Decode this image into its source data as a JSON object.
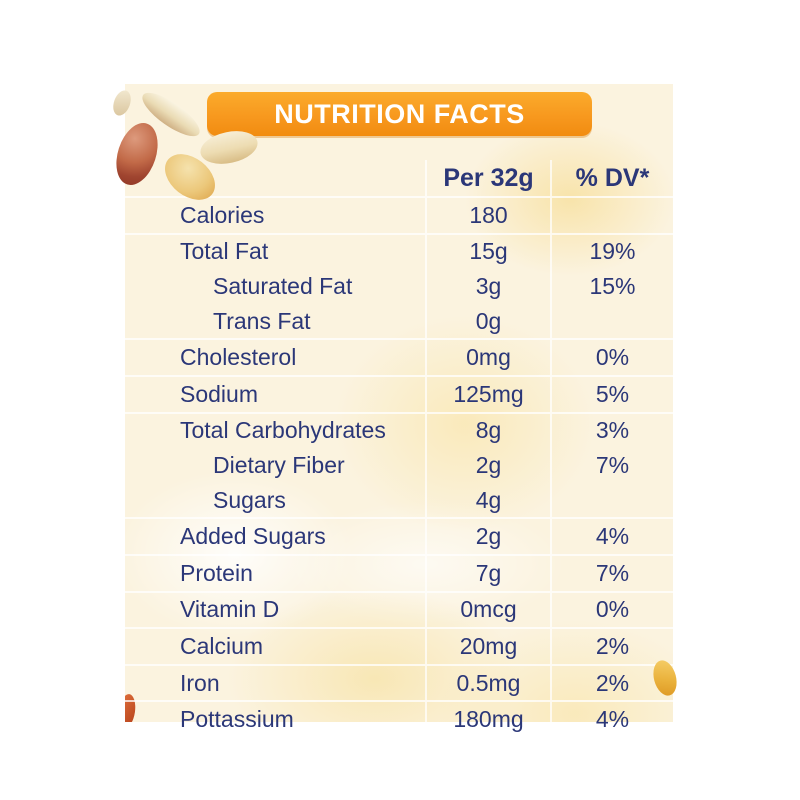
{
  "banner": {
    "title": "NUTRITION FACTS"
  },
  "table": {
    "columns": {
      "serving": "Per 32g",
      "dv": "% DV*"
    },
    "rows": [
      {
        "label": "Calories",
        "value": "180",
        "dv": "",
        "indent": false,
        "divider": true
      },
      {
        "label": "Total Fat",
        "value": "15g",
        "dv": "19%",
        "indent": false,
        "divider": false
      },
      {
        "label": "Saturated Fat",
        "value": "3g",
        "dv": "15%",
        "indent": true,
        "divider": false
      },
      {
        "label": "Trans Fat",
        "value": "0g",
        "dv": "",
        "indent": true,
        "divider": true
      },
      {
        "label": "Cholesterol",
        "value": "0mg",
        "dv": "0%",
        "indent": false,
        "divider": true
      },
      {
        "label": "Sodium",
        "value": "125mg",
        "dv": "5%",
        "indent": false,
        "divider": true
      },
      {
        "label": "Total Carbohydrates",
        "value": "8g",
        "dv": "3%",
        "indent": false,
        "divider": false
      },
      {
        "label": "Dietary Fiber",
        "value": "2g",
        "dv": "7%",
        "indent": true,
        "divider": false
      },
      {
        "label": "Sugars",
        "value": "4g",
        "dv": "",
        "indent": true,
        "divider": true
      },
      {
        "label": "Added Sugars",
        "value": "2g",
        "dv": "4%",
        "indent": false,
        "divider": true
      },
      {
        "label": "Protein",
        "value": "7g",
        "dv": "7%",
        "indent": false,
        "divider": true
      },
      {
        "label": "Vitamin D",
        "value": "0mcg",
        "dv": "0%",
        "indent": false,
        "divider": true
      },
      {
        "label": "Calcium",
        "value": "20mg",
        "dv": "2%",
        "indent": false,
        "divider": true
      },
      {
        "label": "Iron",
        "value": "0.5mg",
        "dv": "2%",
        "indent": false,
        "divider": true
      },
      {
        "label": "Pottassium",
        "value": "180mg",
        "dv": "4%",
        "indent": false,
        "divider": false
      }
    ]
  },
  "colors": {
    "banner_orange": "#F7971D",
    "text_navy": "#2B3778",
    "panel_cream": "#FBF3DF",
    "divider_white": "rgba(255,255,255,0.75)"
  },
  "decorations": {
    "icons": [
      "peanut-red-skin-icon",
      "peanut-cream-half-icon",
      "peanut-pale-half-icon",
      "peanut-golden-half-icon",
      "peanut-right-piece-icon",
      "peanut-bottom-sliver-icon"
    ]
  }
}
